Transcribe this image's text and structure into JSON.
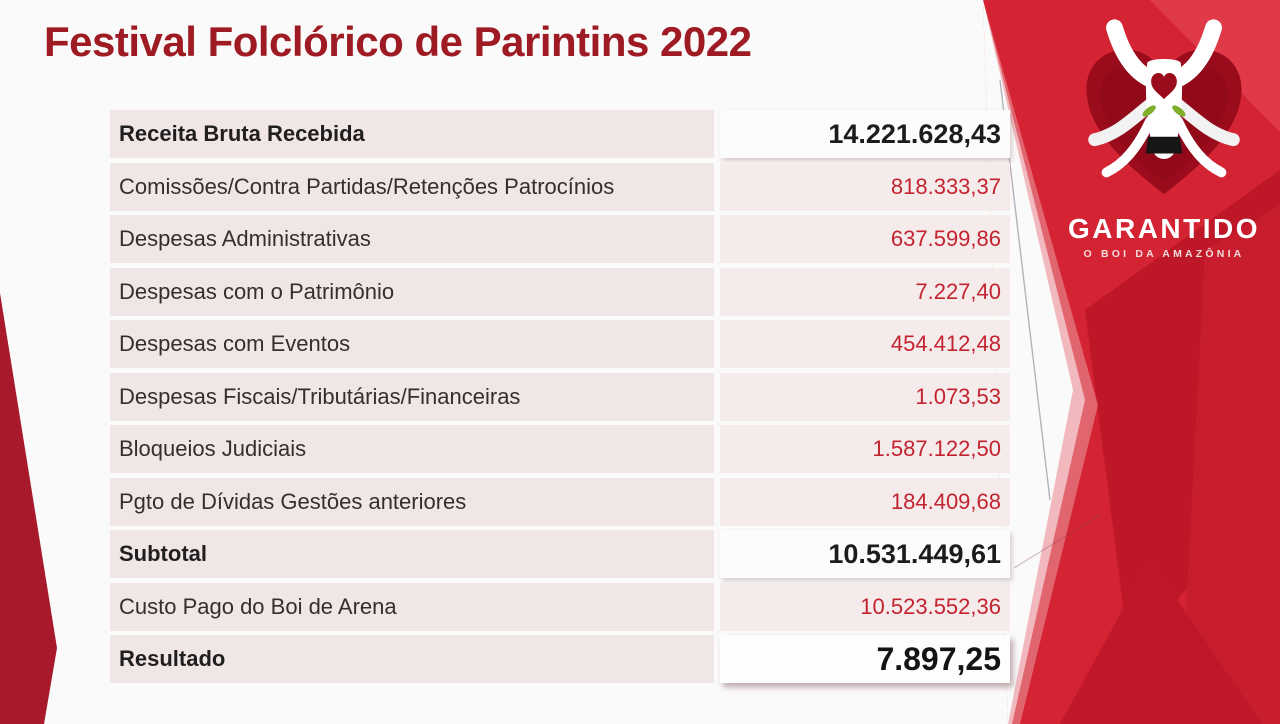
{
  "slide": {
    "title": "Festival Folclórico de Parintins 2022",
    "title_color": "#9e1b24",
    "background_color": "#fbfafa",
    "accent_red": "#d42332",
    "dark_red": "#a81a2b"
  },
  "logo": {
    "name": "GARANTIDO",
    "tagline": "O BOI DA AMAZÔNIA",
    "icon": "bull-head-in-heart",
    "heart_color": "#9a0c1c",
    "eye_color": "#7fae2a"
  },
  "table": {
    "value_color_normal": "#c32330",
    "value_color_emphasis": "#1d1b1b",
    "rows": [
      {
        "label": "Receita Bruta Recebida",
        "value": "14.221.628,43",
        "emphasis": "strong"
      },
      {
        "label": "Comissões/Contra Partidas/Retenções Patrocínios",
        "value": "818.333,37",
        "emphasis": "none"
      },
      {
        "label": "Despesas Administrativas",
        "value": "637.599,86",
        "emphasis": "none"
      },
      {
        "label": "Despesas com o Patrimônio",
        "value": "7.227,40",
        "emphasis": "none"
      },
      {
        "label": "Despesas com Eventos",
        "value": "454.412,48",
        "emphasis": "none"
      },
      {
        "label": "Despesas Fiscais/Tributárias/Financeiras",
        "value": "1.073,53",
        "emphasis": "none"
      },
      {
        "label": "Bloqueios Judiciais",
        "value": "1.587.122,50",
        "emphasis": "none"
      },
      {
        "label": "Pgto de Dívidas Gestões anteriores",
        "value": "184.409,68",
        "emphasis": "none"
      },
      {
        "label": "Subtotal",
        "value": "10.531.449,61",
        "emphasis": "strong"
      },
      {
        "label": "Custo Pago do Boi de Arena",
        "value": "10.523.552,36",
        "emphasis": "none"
      },
      {
        "label": "Resultado",
        "value": "7.897,25",
        "emphasis": "result"
      }
    ]
  }
}
